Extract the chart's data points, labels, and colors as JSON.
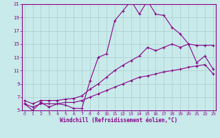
{
  "xlabel": "Windchill (Refroidissement éolien,°C)",
  "bg_color": "#c8eaea",
  "grid_color": "#aacccc",
  "line_color": "#880088",
  "x_hours": [
    0,
    1,
    2,
    3,
    4,
    5,
    6,
    7,
    8,
    9,
    10,
    11,
    12,
    13,
    14,
    15,
    16,
    17,
    18,
    19,
    20,
    21,
    22,
    23
  ],
  "main_curve": [
    6.0,
    5.0,
    6.2,
    5.5,
    6.0,
    5.8,
    5.3,
    5.3,
    9.5,
    13.0,
    13.5,
    18.5,
    20.0,
    21.5,
    19.5,
    21.5,
    19.5,
    19.3,
    17.5,
    16.5,
    15.0,
    12.2,
    13.2,
    11.2
  ],
  "lower_line": [
    6.0,
    5.5,
    6.0,
    6.0,
    6.0,
    6.2,
    6.2,
    6.5,
    7.0,
    7.5,
    8.0,
    8.5,
    9.0,
    9.5,
    10.0,
    10.2,
    10.5,
    10.8,
    11.0,
    11.2,
    11.5,
    11.7,
    11.9,
    10.5
  ],
  "upper_line": [
    6.5,
    6.0,
    6.5,
    6.5,
    6.5,
    6.7,
    6.8,
    7.2,
    8.2,
    9.0,
    10.0,
    11.0,
    11.8,
    12.5,
    13.2,
    14.5,
    14.0,
    14.5,
    15.0,
    14.5,
    15.0,
    14.8,
    14.8,
    14.8
  ],
  "ylim": [
    5,
    21
  ],
  "yticks": [
    5,
    7,
    9,
    11,
    13,
    15,
    17,
    19,
    21
  ],
  "xticks": [
    0,
    1,
    2,
    3,
    4,
    5,
    6,
    7,
    8,
    9,
    10,
    11,
    12,
    13,
    14,
    15,
    16,
    17,
    18,
    19,
    20,
    21,
    22,
    23
  ]
}
